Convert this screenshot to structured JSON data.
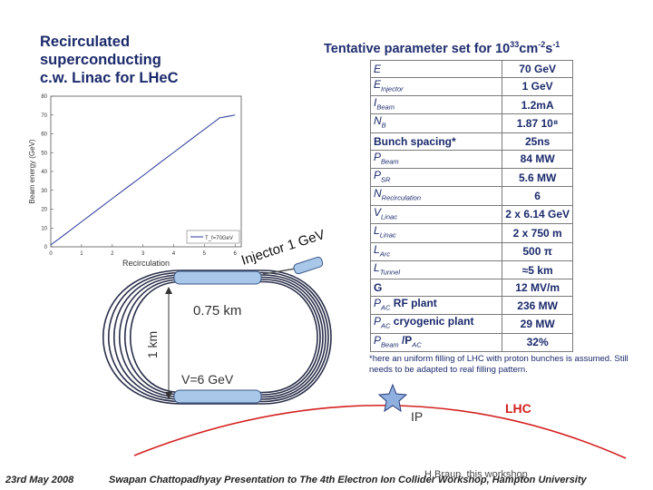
{
  "slide_title": [
    "Recirculated",
    "superconducting",
    "c.w. Linac for LHeC"
  ],
  "param_title": {
    "prefix": "Tentative parameter set for 10",
    "exp": "33",
    "unit": "cm",
    "unit_exp": "-2",
    "unit2": "s",
    "unit2_exp": "-1"
  },
  "params": [
    {
      "name": "E",
      "sub": "",
      "value": "70 GeV",
      "plain": false
    },
    {
      "name": "E",
      "sub": "Injector",
      "value": "1 GeV",
      "plain": false
    },
    {
      "name": "I",
      "sub": "Beam",
      "value": "1.2mA",
      "plain": false
    },
    {
      "name": "N",
      "sub": "B",
      "value": "1.87 10⁸",
      "plain": false
    },
    {
      "name": "Bunch spacing*",
      "sub": "",
      "value": "25ns",
      "plain": true
    },
    {
      "name": "P",
      "sub": "Beam",
      "value": "84 MW",
      "plain": false
    },
    {
      "name": "P",
      "sub": "SR",
      "value": "5.6 MW",
      "plain": false
    },
    {
      "name": "N",
      "sub": "Recirculation",
      "value": "6",
      "plain": false
    },
    {
      "name": "V",
      "sub": "Linac",
      "value": "2 x 6.14 GeV",
      "plain": false
    },
    {
      "name": "L",
      "sub": "Linac",
      "value": "2 x 750 m",
      "plain": false
    },
    {
      "name": "L",
      "sub": "Arc",
      "value": "500 π",
      "plain": false
    },
    {
      "name": "L",
      "sub": "Tunnel",
      "value": "≈5 km",
      "plain": false
    },
    {
      "name": "G",
      "sub": "",
      "value": "12 MV/m",
      "plain": true
    },
    {
      "name": "P",
      "sub": "AC",
      "suffix": " RF plant",
      "value": "236 MW",
      "plain": false
    },
    {
      "name": "P",
      "sub": "AC",
      "suffix": " cryogenic plant",
      "value": "29 MW",
      "plain": false
    },
    {
      "name": "P",
      "sub": "Beam",
      "suffix": " /P",
      "sub2": "AC",
      "value": "32%",
      "plain": false
    }
  ],
  "footnote": "*here an uniform filling of LHC with proton bunches is assumed. Still needs to be adapted to real filling pattern.",
  "inset_chart": {
    "chart_data": {
      "type": "line",
      "title": "",
      "xlabel": "Recirculation",
      "ylabel": "Beam energy (GeV)",
      "xlim": [
        0,
        6.2
      ],
      "ylim": [
        0,
        80
      ],
      "x_ticks": [
        "0",
        "1",
        "2",
        "3",
        "4",
        "5",
        "6"
      ],
      "y_ticks": [
        "0",
        "10",
        "20",
        "30",
        "40",
        "50",
        "60",
        "70",
        "80"
      ],
      "legend": "T_f=70GeV",
      "series": [
        {
          "name": "T_f=70GeV",
          "x": [
            0,
            0.5,
            0.5,
            1,
            1,
            1.5,
            1.5,
            2,
            2,
            2.5,
            2.5,
            3,
            3,
            3.5,
            3.5,
            4,
            4,
            4.5,
            4.5,
            5,
            5,
            5.5,
            5.5,
            6
          ],
          "y": [
            1,
            7.1,
            7.1,
            13.3,
            13.3,
            19.4,
            19.4,
            25.6,
            25.6,
            31.7,
            31.7,
            37.8,
            37.8,
            44,
            44,
            50.1,
            50.1,
            56.3,
            56.3,
            62.4,
            62.4,
            68.5,
            68.5,
            70
          ]
        }
      ]
    }
  },
  "diagram": {
    "injector_label": "Injector 1 GeV",
    "length_label": "0.75 km",
    "height_label": "1 km",
    "voltage_label": "V=6 GeV",
    "ip_label": "IP",
    "lhc_label": "LHC",
    "ring_color": "#2a2f4a",
    "linac_color": "#a9c7e8",
    "lhc_color": "#d42020",
    "star_color": "#8fb0de"
  },
  "footer": {
    "date": "23rd May 2008",
    "text": "Swapan Chattopadhyay  Presentation to The 4th Electron Ion Collider Workshop, Hampton University",
    "overlay": "H.Braun, this workshop"
  }
}
